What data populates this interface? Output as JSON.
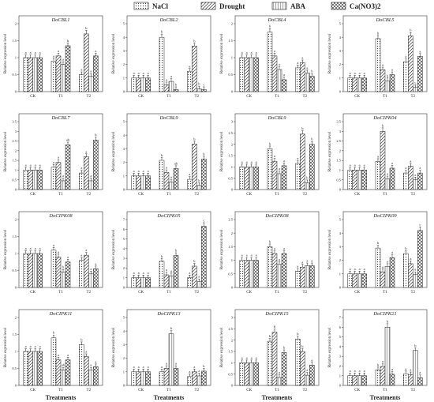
{
  "legend": [
    {
      "name": "NaCl",
      "pattern": "dots"
    },
    {
      "name": "Drought",
      "pattern": "diag"
    },
    {
      "name": "ABA",
      "pattern": "vert"
    },
    {
      "name": "Ca(NO3)2",
      "pattern": "cross"
    }
  ],
  "xlabel": "Treatments",
  "ylabel": "Relative expression level",
  "chart_data": [
    {
      "type": "bar",
      "title": "DoCBL1",
      "categories": [
        "CK",
        "T1",
        "T2"
      ],
      "ylim": [
        0,
        2.0
      ],
      "yticks": [
        0,
        0.5,
        1.0,
        1.5,
        2.0
      ],
      "series": [
        {
          "name": "NaCl",
          "values": [
            1,
            0.9,
            0.5
          ]
        },
        {
          "name": "Drought",
          "values": [
            1,
            1.05,
            1.7
          ]
        },
        {
          "name": "ABA",
          "values": [
            1,
            0.8,
            0.45
          ]
        },
        {
          "name": "Ca(NO3)2",
          "values": [
            1,
            1.35,
            1.05
          ]
        }
      ],
      "letters": [
        [
          "a",
          "a",
          "a",
          "a"
        ],
        [
          "a",
          "a",
          "a",
          "b"
        ],
        [
          "a",
          "b",
          "a",
          "a"
        ]
      ]
    },
    {
      "type": "bar",
      "title": "DoCBL2",
      "categories": [
        "CK",
        "T1",
        "T2"
      ],
      "ylim": [
        0,
        5
      ],
      "yticks": [
        0,
        1,
        2,
        3,
        4,
        5
      ],
      "series": [
        {
          "name": "NaCl",
          "values": [
            1,
            4.0,
            1.5
          ]
        },
        {
          "name": "Drought",
          "values": [
            1,
            0.5,
            3.35
          ]
        },
        {
          "name": "ABA",
          "values": [
            1,
            0.75,
            0.2
          ]
        },
        {
          "name": "Ca(NO3)2",
          "values": [
            1,
            0.15,
            0.15
          ]
        }
      ],
      "letters": [
        [
          "a",
          "a",
          "a",
          "a"
        ],
        [
          "b",
          "a",
          "a",
          "b"
        ],
        [
          "a",
          "b",
          "b",
          "c"
        ]
      ]
    },
    {
      "type": "bar",
      "title": "DoCBL4",
      "categories": [
        "CK",
        "T1",
        "T2"
      ],
      "ylim": [
        0,
        2.0
      ],
      "yticks": [
        0,
        0.5,
        1.0,
        1.5,
        2.0
      ],
      "series": [
        {
          "name": "NaCl",
          "values": [
            1,
            1.75,
            0.7
          ]
        },
        {
          "name": "Drought",
          "values": [
            1,
            1.05,
            0.85
          ]
        },
        {
          "name": "ABA",
          "values": [
            1,
            0.65,
            0.55
          ]
        },
        {
          "name": "Ca(NO3)2",
          "values": [
            1,
            0.35,
            0.45
          ]
        }
      ],
      "letters": [
        [
          "a",
          "a",
          "a",
          "a"
        ],
        [
          "b",
          "a",
          "a",
          "a"
        ],
        [
          "a",
          "a",
          "a",
          "b"
        ]
      ]
    },
    {
      "type": "bar",
      "title": "DoCBL5",
      "categories": [
        "CK",
        "T1",
        "T2"
      ],
      "ylim": [
        0,
        5
      ],
      "yticks": [
        0,
        1,
        2,
        3,
        4,
        5
      ],
      "series": [
        {
          "name": "NaCl",
          "values": [
            1,
            3.9,
            2.2
          ]
        },
        {
          "name": "Drought",
          "values": [
            1,
            1.6,
            4.1
          ]
        },
        {
          "name": "ABA",
          "values": [
            1,
            0.8,
            0.3
          ]
        },
        {
          "name": "Ca(NO3)2",
          "values": [
            1,
            1.25,
            2.6
          ]
        }
      ],
      "letters": [
        [
          "a",
          "a",
          "a",
          "a"
        ],
        [
          "b",
          "a",
          "b",
          "a"
        ],
        [
          "a",
          "b",
          "c",
          "a"
        ]
      ]
    },
    {
      "type": "bar",
      "title": "DoCBL7",
      "categories": [
        "CK",
        "T1",
        "T2"
      ],
      "ylim": [
        0,
        3.5
      ],
      "yticks": [
        0,
        0.5,
        1.0,
        1.5,
        2.0,
        2.5,
        3.0,
        3.5
      ],
      "series": [
        {
          "name": "NaCl",
          "values": [
            1,
            1.15,
            0.85
          ]
        },
        {
          "name": "Drought",
          "values": [
            1,
            1.4,
            1.7
          ]
        },
        {
          "name": "ABA",
          "values": [
            1,
            0.45,
            0.45
          ]
        },
        {
          "name": "Ca(NO3)2",
          "values": [
            1,
            2.3,
            2.55
          ]
        }
      ],
      "letters": [
        [
          "a",
          "a",
          "a",
          "a"
        ],
        [
          "a",
          "a",
          "a",
          "ab"
        ],
        [
          "a",
          "a",
          "a",
          "b"
        ]
      ]
    },
    {
      "type": "bar",
      "title": "DoCBL9",
      "categories": [
        "CK",
        "T1",
        "T2"
      ],
      "ylim": [
        0,
        5
      ],
      "yticks": [
        0,
        1,
        2,
        3,
        4,
        5
      ],
      "series": [
        {
          "name": "NaCl",
          "values": [
            1,
            2.15,
            0.75
          ]
        },
        {
          "name": "Drought",
          "values": [
            1,
            1.25,
            3.35
          ]
        },
        {
          "name": "ABA",
          "values": [
            1,
            0.55,
            0.3
          ]
        },
        {
          "name": "Ca(NO3)2",
          "values": [
            1,
            1.55,
            2.25
          ]
        }
      ],
      "letters": [
        [
          "a",
          "a",
          "a",
          "a"
        ],
        [
          "b",
          "a",
          "a",
          "ab"
        ],
        [
          "a",
          "b",
          "b",
          "b"
        ]
      ]
    },
    {
      "type": "bar",
      "title": "DoCBL9",
      "categories": [
        "CK",
        "T1",
        "T2"
      ],
      "ylim": [
        0,
        3.0
      ],
      "yticks": [
        0,
        0.5,
        1.0,
        1.5,
        2.0,
        2.5,
        3.0
      ],
      "series": [
        {
          "name": "NaCl",
          "values": [
            1,
            1.8,
            1.15
          ]
        },
        {
          "name": "Drought",
          "values": [
            1,
            1.25,
            2.45
          ]
        },
        {
          "name": "ABA",
          "values": [
            1,
            0.7,
            0.3
          ]
        },
        {
          "name": "Ca(NO3)2",
          "values": [
            1,
            1.05,
            2.0
          ]
        }
      ],
      "letters": [
        [
          "a",
          "a",
          "a",
          "a"
        ],
        [
          "b",
          "a",
          "a",
          "a"
        ],
        [
          "a",
          "b",
          "b",
          "b"
        ]
      ]
    },
    {
      "type": "bar",
      "title": "DoCIPK04",
      "categories": [
        "CK",
        "T1",
        "T2"
      ],
      "ylim": [
        0,
        3.5
      ],
      "yticks": [
        0,
        0.5,
        1.0,
        1.5,
        2.0,
        2.5,
        3.0,
        3.5
      ],
      "series": [
        {
          "name": "NaCl",
          "values": [
            1,
            1.45,
            0.85
          ]
        },
        {
          "name": "Drought",
          "values": [
            1,
            3.0,
            1.2
          ]
        },
        {
          "name": "ABA",
          "values": [
            1,
            0.55,
            0.5
          ]
        },
        {
          "name": "Ca(NO3)2",
          "values": [
            1,
            1.1,
            0.85
          ]
        }
      ],
      "letters": [
        [
          "a",
          "a",
          "a",
          "a"
        ],
        [
          "a",
          "b",
          "a",
          "a"
        ],
        [
          "a",
          "a",
          "a",
          "a"
        ]
      ]
    },
    {
      "type": "bar",
      "title": "DoCIPK08",
      "categories": [
        "CK",
        "T1",
        "T2"
      ],
      "ylim": [
        0,
        2.0
      ],
      "yticks": [
        0,
        0.5,
        1.0,
        1.5,
        2.0
      ],
      "series": [
        {
          "name": "NaCl",
          "values": [
            1,
            1.1,
            0.8
          ]
        },
        {
          "name": "Drought",
          "values": [
            1,
            0.9,
            0.95
          ]
        },
        {
          "name": "ABA",
          "values": [
            1,
            0.45,
            0.4
          ]
        },
        {
          "name": "Ca(NO3)2",
          "values": [
            1,
            0.75,
            0.55
          ]
        }
      ],
      "letters": [
        [
          "a",
          "a",
          "a",
          "a"
        ],
        [
          "a",
          "a",
          "b",
          "a"
        ],
        [
          "a",
          "a",
          "a",
          "a"
        ]
      ]
    },
    {
      "type": "bar",
      "title": "DoCIPK05",
      "categories": [
        "CK",
        "T1",
        "T2"
      ],
      "ylim": [
        0,
        7
      ],
      "yticks": [
        0,
        1,
        2,
        3,
        4,
        5,
        6,
        7
      ],
      "series": [
        {
          "name": "NaCl",
          "values": [
            1,
            2.7,
            1.0
          ]
        },
        {
          "name": "Drought",
          "values": [
            1,
            1.3,
            2.2
          ]
        },
        {
          "name": "ABA",
          "values": [
            1,
            1.2,
            0.6
          ]
        },
        {
          "name": "Ca(NO3)2",
          "values": [
            1,
            3.3,
            6.3
          ]
        }
      ],
      "letters": [
        [
          "a",
          "a",
          "a",
          "a"
        ],
        [
          "b",
          "a",
          "a",
          "b"
        ],
        [
          "a",
          "b",
          "a",
          "c"
        ]
      ]
    },
    {
      "type": "bar",
      "title": "DoCIPK08",
      "categories": [
        "CK",
        "T1",
        "T2"
      ],
      "ylim": [
        0,
        2.5
      ],
      "yticks": [
        0,
        0.5,
        1.0,
        1.5,
        2.0,
        2.5
      ],
      "series": [
        {
          "name": "NaCl",
          "values": [
            1,
            1.5,
            0.6
          ]
        },
        {
          "name": "Drought",
          "values": [
            1,
            1.25,
            0.75
          ]
        },
        {
          "name": "ABA",
          "values": [
            1,
            0.85,
            0.8
          ]
        },
        {
          "name": "Ca(NO3)2",
          "values": [
            1,
            1.25,
            0.8
          ]
        }
      ],
      "letters": [
        [
          "a",
          "a",
          "a",
          "a"
        ],
        [
          "b",
          "a",
          "a",
          "a"
        ],
        [
          "a",
          "a",
          "a",
          "a"
        ]
      ]
    },
    {
      "type": "bar",
      "title": "DoCIPK09",
      "categories": [
        "CK",
        "T1",
        "T2"
      ],
      "ylim": [
        0,
        5
      ],
      "yticks": [
        0,
        1,
        2,
        3,
        4,
        5
      ],
      "series": [
        {
          "name": "NaCl",
          "values": [
            1,
            2.9,
            2.5
          ]
        },
        {
          "name": "Drought",
          "values": [
            1,
            1.15,
            1.75
          ]
        },
        {
          "name": "ABA",
          "values": [
            1,
            1.55,
            0.95
          ]
        },
        {
          "name": "Ca(NO3)2",
          "values": [
            1,
            2.2,
            4.2
          ]
        }
      ],
      "letters": [
        [
          "a",
          "a",
          "a",
          "a"
        ],
        [
          "b",
          "a",
          "a",
          "a"
        ],
        [
          "b",
          "a",
          "a",
          "c"
        ]
      ]
    },
    {
      "type": "bar",
      "title": "DoCIPK11",
      "categories": [
        "CK",
        "T1",
        "T2"
      ],
      "ylim": [
        0,
        2.0
      ],
      "yticks": [
        0,
        0.5,
        1.0,
        1.5,
        2.0
      ],
      "series": [
        {
          "name": "NaCl",
          "values": [
            1,
            1.4,
            1.2
          ]
        },
        {
          "name": "Drought",
          "values": [
            1,
            0.75,
            0.85
          ]
        },
        {
          "name": "ABA",
          "values": [
            1,
            0.45,
            0.45
          ]
        },
        {
          "name": "Ca(NO3)2",
          "values": [
            1,
            0.75,
            0.55
          ]
        }
      ],
      "letters": [
        [
          "a",
          "a",
          "a",
          "a"
        ],
        [
          "b",
          "a",
          "ab",
          "a"
        ],
        [
          "b",
          "a",
          "a",
          "a"
        ]
      ]
    },
    {
      "type": "bar",
      "title": "DoCIPK13",
      "categories": [
        "CK",
        "T1",
        "T2"
      ],
      "ylim": [
        0,
        5
      ],
      "yticks": [
        0,
        1,
        2,
        3,
        4,
        5
      ],
      "series": [
        {
          "name": "NaCl",
          "values": [
            1,
            1.0,
            0.65
          ]
        },
        {
          "name": "Drought",
          "values": [
            1,
            1.25,
            1.0
          ]
        },
        {
          "name": "ABA",
          "values": [
            1,
            3.8,
            0.7
          ]
        },
        {
          "name": "Ca(NO3)2",
          "values": [
            1,
            1.25,
            1.05
          ]
        }
      ],
      "letters": [
        [
          "a",
          "a",
          "a",
          "a"
        ],
        [
          "a",
          "a",
          "b",
          "a"
        ],
        [
          "a",
          "a",
          "a",
          "b"
        ]
      ]
    },
    {
      "type": "bar",
      "title": "DoCIPK15",
      "categories": [
        "CK",
        "T1",
        "T2"
      ],
      "ylim": [
        0,
        3.0
      ],
      "yticks": [
        0,
        0.5,
        1.0,
        1.5,
        2.0,
        2.5,
        3.0
      ],
      "series": [
        {
          "name": "NaCl",
          "values": [
            1,
            1.95,
            2.05
          ]
        },
        {
          "name": "Drought",
          "values": [
            1,
            2.35,
            1.5
          ]
        },
        {
          "name": "ABA",
          "values": [
            1,
            0.35,
            0.45
          ]
        },
        {
          "name": "Ca(NO3)2",
          "values": [
            1,
            1.45,
            0.9
          ]
        }
      ],
      "letters": [
        [
          "a",
          "a",
          "a",
          "a"
        ],
        [
          "b",
          "b",
          "a",
          "b"
        ],
        [
          "b",
          "b",
          "a",
          "a"
        ]
      ]
    },
    {
      "type": "bar",
      "title": "DoCIPK21",
      "categories": [
        "CK",
        "T1",
        "T2"
      ],
      "ylim": [
        0,
        7
      ],
      "yticks": [
        0,
        1,
        2,
        3,
        4,
        5,
        6,
        7
      ],
      "series": [
        {
          "name": "NaCl",
          "values": [
            1,
            1.6,
            1.2
          ]
        },
        {
          "name": "Drought",
          "values": [
            1,
            1.95,
            1.1
          ]
        },
        {
          "name": "ABA",
          "values": [
            1,
            6.0,
            3.6
          ]
        },
        {
          "name": "Ca(NO3)2",
          "values": [
            1,
            1.15,
            0.8
          ]
        }
      ],
      "letters": [
        [
          "a",
          "a",
          "a",
          "a"
        ],
        [
          "b",
          "a",
          "b",
          "a"
        ],
        [
          "a",
          "a",
          "b",
          "a"
        ]
      ]
    }
  ]
}
